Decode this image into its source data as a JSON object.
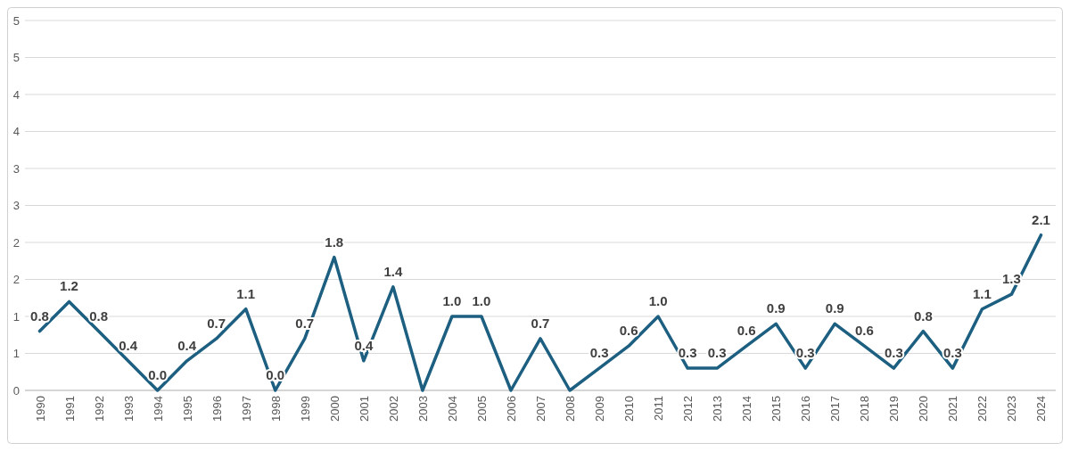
{
  "chart_data": {
    "type": "line",
    "categories": [
      "1990",
      "1991",
      "1992",
      "1993",
      "1994",
      "1995",
      "1996",
      "1997",
      "1998",
      "1999",
      "2000",
      "2001",
      "2002",
      "2003",
      "2004",
      "2005",
      "2006",
      "2007",
      "2008",
      "2009",
      "2010",
      "2011",
      "2012",
      "2013",
      "2014",
      "2015",
      "2016",
      "2017",
      "2018",
      "2019",
      "2020",
      "2021",
      "2022",
      "2023",
      "2024"
    ],
    "series": [
      {
        "color": "#1d5f80",
        "values": [
          0.8,
          1.2,
          0.8,
          0.4,
          0.0,
          0.4,
          0.7,
          1.1,
          0.0,
          0.7,
          1.8,
          0.4,
          1.4,
          0.0,
          1.0,
          1.0,
          0.0,
          0.7,
          0.0,
          0.3,
          0.6,
          1.0,
          0.3,
          0.3,
          0.6,
          0.9,
          0.3,
          0.9,
          0.6,
          0.3,
          0.8,
          0.3,
          1.1,
          1.3,
          2.1
        ],
        "value_labels": [
          "0.8",
          "1.2",
          "0.8",
          "0.4",
          "0.0",
          "0.4",
          "0.7",
          "1.1",
          "0.0",
          "0.7",
          "1.8",
          "0.4",
          "1.4",
          null,
          "1.0",
          "1.0",
          null,
          "0.7",
          null,
          "0.3",
          "0.6",
          "1.0",
          "0.3",
          "0.3",
          "0.6",
          "0.9",
          "0.3",
          "0.9",
          "0.6",
          "0.3",
          "0.8",
          "0.3",
          "1.1",
          "1.3",
          "2.1"
        ]
      }
    ],
    "ylim": [
      0,
      5
    ],
    "yticks": [
      0,
      {
        "value": 0.5,
        "label": "1"
      },
      1,
      {
        "value": 1.5,
        "label": "2"
      },
      2,
      {
        "value": 2.5,
        "label": "3"
      },
      3,
      {
        "value": 3.5,
        "label": "4"
      },
      4,
      {
        "value": 4.5,
        "label": "5"
      },
      5
    ],
    "grid": "y",
    "marker": "none",
    "line_style": "solid"
  }
}
